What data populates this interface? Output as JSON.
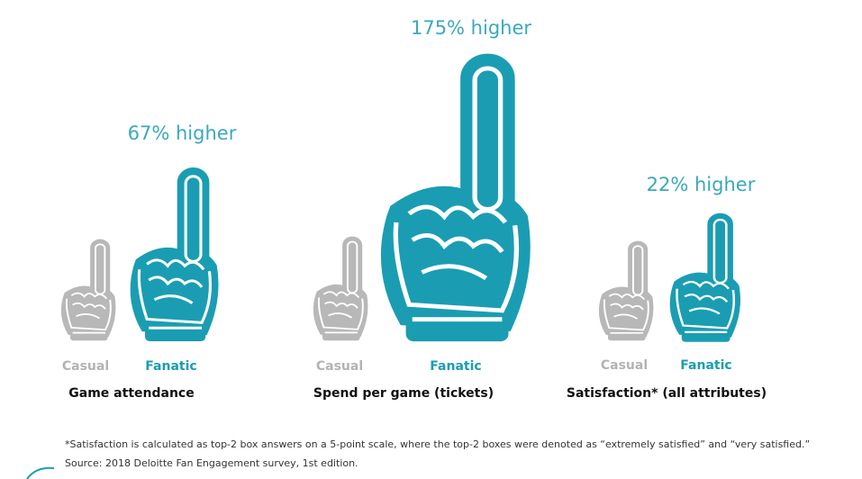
{
  "groups": [
    {
      "difference": "67% higher",
      "casual": "Casual",
      "fanatic": "Fanatic",
      "category": "Game attendance"
    },
    {
      "difference": "175% higher",
      "casual": "Casual",
      "fanatic": "Fanatic",
      "category": "Spend per game (tickets)"
    },
    {
      "difference": "22% higher",
      "casual": "Casual",
      "fanatic": "Fanatic",
      "category": "Satisfaction* (all attributes)"
    }
  ],
  "footnote": "*Satisfaction is calculated as top-2 box answers on a 5-point scale, where the top-2 boxes were denoted as “extremely satisfied” and “very satisfied.”",
  "source": "Source: 2018 Deloitte Fan Engagement survey, 1st edition."
}
